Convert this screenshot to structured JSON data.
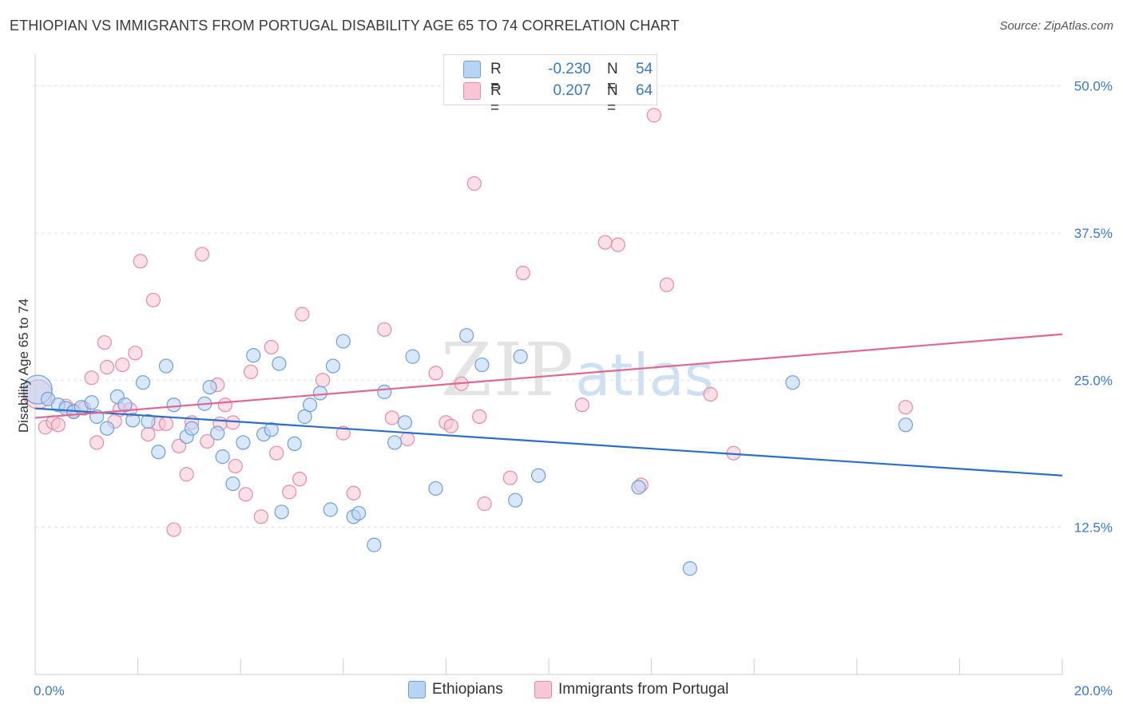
{
  "header": {
    "title": "ETHIOPIAN VS IMMIGRANTS FROM PORTUGAL DISABILITY AGE 65 TO 74 CORRELATION CHART",
    "source": "Source: ZipAtlas.com"
  },
  "watermark": {
    "zip": "ZIP",
    "atlas": "atlas"
  },
  "legend": {
    "rows": [
      {
        "r_label": "R =",
        "r_value": "-0.230",
        "n_label": "N =",
        "n_value": "54"
      },
      {
        "r_label": "R =",
        "r_value": "0.207",
        "n_label": "N =",
        "n_value": "64"
      }
    ]
  },
  "colors": {
    "ethiopians_fill": "#b8d4f4",
    "ethiopians_stroke": "#6f9fd8",
    "ethiopians_line": "#2a6fcb",
    "portugal_fill": "#f8c6d6",
    "portugal_stroke": "#e88aa8",
    "portugal_line": "#e06890",
    "tick_label": "#3a78c9"
  },
  "chart_data": {
    "type": "scatter",
    "ylabel": "Disability Age 65 to 74",
    "xlim": [
      0,
      20
    ],
    "ylim": [
      0,
      52
    ],
    "x_tick_labels": [
      {
        "value": 0,
        "label": "0.0%"
      },
      {
        "value": 20,
        "label": "20.0%"
      }
    ],
    "y_tick_labels": [
      {
        "value": 12.5,
        "label": "12.5%"
      },
      {
        "value": 25,
        "label": "25.0%"
      },
      {
        "value": 37.5,
        "label": "37.5%"
      },
      {
        "value": 50,
        "label": "50.0%"
      }
    ],
    "grid": true,
    "series": [
      {
        "name": "Ethiopians",
        "trend": {
          "x": [
            0,
            20
          ],
          "y": [
            22.6,
            16.9
          ]
        },
        "points": [
          {
            "x": 0.05,
            "y": 24.2,
            "big": true
          },
          {
            "x": 0.25,
            "y": 23.4
          },
          {
            "x": 0.45,
            "y": 22.9
          },
          {
            "x": 0.6,
            "y": 22.6
          },
          {
            "x": 0.75,
            "y": 22.3
          },
          {
            "x": 0.9,
            "y": 22.7
          },
          {
            "x": 1.1,
            "y": 23.1
          },
          {
            "x": 1.2,
            "y": 21.9
          },
          {
            "x": 1.4,
            "y": 20.9
          },
          {
            "x": 1.6,
            "y": 23.6
          },
          {
            "x": 1.75,
            "y": 22.9
          },
          {
            "x": 1.9,
            "y": 21.6
          },
          {
            "x": 2.1,
            "y": 24.8
          },
          {
            "x": 2.2,
            "y": 21.5
          },
          {
            "x": 2.4,
            "y": 18.9
          },
          {
            "x": 2.55,
            "y": 26.2
          },
          {
            "x": 2.7,
            "y": 22.9
          },
          {
            "x": 2.95,
            "y": 20.2
          },
          {
            "x": 3.05,
            "y": 20.9
          },
          {
            "x": 3.3,
            "y": 23.0
          },
          {
            "x": 3.4,
            "y": 24.4
          },
          {
            "x": 3.55,
            "y": 20.5
          },
          {
            "x": 3.65,
            "y": 18.5
          },
          {
            "x": 3.85,
            "y": 16.2
          },
          {
            "x": 4.05,
            "y": 19.7
          },
          {
            "x": 4.25,
            "y": 27.1
          },
          {
            "x": 4.45,
            "y": 20.4
          },
          {
            "x": 4.6,
            "y": 20.8
          },
          {
            "x": 4.75,
            "y": 26.4
          },
          {
            "x": 4.8,
            "y": 13.8
          },
          {
            "x": 5.05,
            "y": 19.6
          },
          {
            "x": 5.25,
            "y": 21.9
          },
          {
            "x": 5.35,
            "y": 22.9
          },
          {
            "x": 5.55,
            "y": 23.9
          },
          {
            "x": 5.75,
            "y": 14.0
          },
          {
            "x": 5.8,
            "y": 26.2
          },
          {
            "x": 6.0,
            "y": 28.3
          },
          {
            "x": 6.2,
            "y": 13.4
          },
          {
            "x": 6.3,
            "y": 13.7
          },
          {
            "x": 6.6,
            "y": 11.0
          },
          {
            "x": 6.8,
            "y": 24.0
          },
          {
            "x": 7.0,
            "y": 19.7
          },
          {
            "x": 7.2,
            "y": 21.4
          },
          {
            "x": 7.35,
            "y": 27.0
          },
          {
            "x": 7.8,
            "y": 15.8
          },
          {
            "x": 8.4,
            "y": 28.8
          },
          {
            "x": 8.7,
            "y": 26.3
          },
          {
            "x": 9.35,
            "y": 14.8
          },
          {
            "x": 9.45,
            "y": 27.0
          },
          {
            "x": 9.8,
            "y": 16.9
          },
          {
            "x": 11.75,
            "y": 15.9
          },
          {
            "x": 12.75,
            "y": 9.0
          },
          {
            "x": 14.75,
            "y": 24.8
          },
          {
            "x": 16.95,
            "y": 21.2
          }
        ]
      },
      {
        "name": "Immigrants from Portugal",
        "trend": {
          "x": [
            0,
            20
          ],
          "y": [
            21.8,
            28.9
          ]
        },
        "points": [
          {
            "x": 0.05,
            "y": 23.8,
            "big": true
          },
          {
            "x": 0.2,
            "y": 21.0
          },
          {
            "x": 0.35,
            "y": 21.4
          },
          {
            "x": 0.45,
            "y": 21.2
          },
          {
            "x": 0.6,
            "y": 22.8
          },
          {
            "x": 0.75,
            "y": 22.4
          },
          {
            "x": 0.95,
            "y": 22.6
          },
          {
            "x": 1.1,
            "y": 25.2
          },
          {
            "x": 1.2,
            "y": 19.7
          },
          {
            "x": 1.35,
            "y": 28.2
          },
          {
            "x": 1.4,
            "y": 26.1
          },
          {
            "x": 1.55,
            "y": 21.5
          },
          {
            "x": 1.65,
            "y": 22.5
          },
          {
            "x": 1.7,
            "y": 26.3
          },
          {
            "x": 1.85,
            "y": 22.5
          },
          {
            "x": 1.95,
            "y": 27.3
          },
          {
            "x": 2.05,
            "y": 35.1
          },
          {
            "x": 2.2,
            "y": 20.4
          },
          {
            "x": 2.3,
            "y": 31.8
          },
          {
            "x": 2.4,
            "y": 21.3
          },
          {
            "x": 2.55,
            "y": 21.3
          },
          {
            "x": 2.7,
            "y": 12.3
          },
          {
            "x": 2.8,
            "y": 19.4
          },
          {
            "x": 2.95,
            "y": 17.0
          },
          {
            "x": 3.05,
            "y": 21.4
          },
          {
            "x": 3.25,
            "y": 35.7
          },
          {
            "x": 3.35,
            "y": 19.8
          },
          {
            "x": 3.55,
            "y": 24.6
          },
          {
            "x": 3.6,
            "y": 21.3
          },
          {
            "x": 3.7,
            "y": 22.9
          },
          {
            "x": 3.85,
            "y": 21.4
          },
          {
            "x": 3.9,
            "y": 17.7
          },
          {
            "x": 4.1,
            "y": 15.3
          },
          {
            "x": 4.2,
            "y": 25.7
          },
          {
            "x": 4.4,
            "y": 13.4
          },
          {
            "x": 4.6,
            "y": 27.8
          },
          {
            "x": 4.7,
            "y": 18.8
          },
          {
            "x": 4.95,
            "y": 15.5
          },
          {
            "x": 5.15,
            "y": 16.6
          },
          {
            "x": 5.2,
            "y": 30.6
          },
          {
            "x": 5.6,
            "y": 25.0
          },
          {
            "x": 6.0,
            "y": 20.5
          },
          {
            "x": 6.2,
            "y": 15.4
          },
          {
            "x": 6.8,
            "y": 29.3
          },
          {
            "x": 6.95,
            "y": 21.8
          },
          {
            "x": 7.25,
            "y": 20.0
          },
          {
            "x": 7.8,
            "y": 25.6
          },
          {
            "x": 8.0,
            "y": 21.4
          },
          {
            "x": 8.1,
            "y": 21.1
          },
          {
            "x": 8.3,
            "y": 24.7
          },
          {
            "x": 8.55,
            "y": 41.7
          },
          {
            "x": 8.65,
            "y": 21.9
          },
          {
            "x": 8.75,
            "y": 14.5
          },
          {
            "x": 9.25,
            "y": 16.7
          },
          {
            "x": 9.5,
            "y": 34.1
          },
          {
            "x": 10.65,
            "y": 22.9
          },
          {
            "x": 11.1,
            "y": 36.7
          },
          {
            "x": 11.35,
            "y": 36.5
          },
          {
            "x": 11.8,
            "y": 16.1
          },
          {
            "x": 12.05,
            "y": 47.5
          },
          {
            "x": 12.3,
            "y": 33.1
          },
          {
            "x": 13.15,
            "y": 23.8
          },
          {
            "x": 13.6,
            "y": 18.8
          },
          {
            "x": 16.95,
            "y": 22.7
          }
        ]
      }
    ]
  }
}
